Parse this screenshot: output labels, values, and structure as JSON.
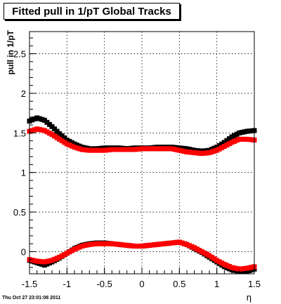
{
  "chart_data": {
    "type": "scatter",
    "title": "Fitted pull in 1/pT  Global Tracks",
    "ylabel": "pull in 1/pT",
    "xlabel": "η",
    "xlim": [
      -1.5,
      1.5
    ],
    "ylim": [
      -0.28,
      2.78
    ],
    "x_ticks": [
      "-1.5",
      "-1",
      "-0.5",
      "0",
      "0.5",
      "1",
      "1.5"
    ],
    "y_ticks": [
      "0",
      "0.5",
      "1",
      "1.5",
      "2",
      "2.5"
    ],
    "grid": true,
    "series": [
      {
        "color": "#000000",
        "marker": "square",
        "x": [
          -1.5,
          -1.4,
          -1.3,
          -1.2,
          -1.1,
          -1.0,
          -0.9,
          -0.8,
          -0.7,
          -0.6,
          -0.5,
          -0.4,
          -0.3,
          -0.2,
          -0.1,
          0.0,
          0.1,
          0.2,
          0.3,
          0.4,
          0.5,
          0.6,
          0.7,
          0.8,
          0.9,
          1.0,
          1.1,
          1.2,
          1.3,
          1.4,
          1.5
        ],
        "y": [
          1.65,
          1.69,
          1.66,
          1.58,
          1.49,
          1.41,
          1.36,
          1.32,
          1.3,
          1.3,
          1.31,
          1.31,
          1.31,
          1.3,
          1.31,
          1.31,
          1.31,
          1.32,
          1.32,
          1.32,
          1.31,
          1.3,
          1.28,
          1.27,
          1.28,
          1.32,
          1.38,
          1.45,
          1.5,
          1.52,
          1.53
        ]
      },
      {
        "color": "#ff0000",
        "marker": "square",
        "x": [
          -1.5,
          -1.4,
          -1.3,
          -1.2,
          -1.1,
          -1.0,
          -0.9,
          -0.8,
          -0.7,
          -0.6,
          -0.5,
          -0.4,
          -0.3,
          -0.2,
          -0.1,
          0.0,
          0.1,
          0.2,
          0.3,
          0.4,
          0.5,
          0.6,
          0.7,
          0.8,
          0.9,
          1.0,
          1.1,
          1.2,
          1.3,
          1.4,
          1.5
        ],
        "y": [
          1.52,
          1.55,
          1.53,
          1.48,
          1.42,
          1.36,
          1.32,
          1.29,
          1.28,
          1.28,
          1.28,
          1.29,
          1.29,
          1.29,
          1.29,
          1.3,
          1.3,
          1.3,
          1.3,
          1.3,
          1.28,
          1.26,
          1.25,
          1.24,
          1.25,
          1.28,
          1.33,
          1.38,
          1.42,
          1.42,
          1.41
        ]
      },
      {
        "color": "#000000",
        "marker": "square",
        "x": [
          -1.5,
          -1.4,
          -1.3,
          -1.2,
          -1.1,
          -1.0,
          -0.9,
          -0.8,
          -0.7,
          -0.6,
          -0.5,
          -0.4,
          -0.3,
          -0.2,
          -0.1,
          0.0,
          0.1,
          0.2,
          0.3,
          0.4,
          0.5,
          0.6,
          0.7,
          0.8,
          0.9,
          1.0,
          1.1,
          1.2,
          1.3,
          1.4,
          1.5
        ],
        "y": [
          -0.11,
          -0.14,
          -0.17,
          -0.13,
          -0.08,
          -0.02,
          0.04,
          0.08,
          0.1,
          0.11,
          0.11,
          0.1,
          0.09,
          0.08,
          0.07,
          0.07,
          0.08,
          0.09,
          0.1,
          0.11,
          0.12,
          0.09,
          0.04,
          -0.01,
          -0.07,
          -0.13,
          -0.19,
          -0.23,
          -0.25,
          -0.25,
          -0.22
        ]
      },
      {
        "color": "#ff0000",
        "marker": "square",
        "x": [
          -1.5,
          -1.4,
          -1.3,
          -1.2,
          -1.1,
          -1.0,
          -0.9,
          -0.8,
          -0.7,
          -0.6,
          -0.5,
          -0.4,
          -0.3,
          -0.2,
          -0.1,
          0.0,
          0.1,
          0.2,
          0.3,
          0.4,
          0.5,
          0.6,
          0.7,
          0.8,
          0.9,
          1.0,
          1.1,
          1.2,
          1.3,
          1.4,
          1.5
        ],
        "y": [
          -0.1,
          -0.12,
          -0.13,
          -0.11,
          -0.07,
          -0.02,
          0.03,
          0.07,
          0.09,
          0.1,
          0.1,
          0.1,
          0.09,
          0.08,
          0.07,
          0.07,
          0.08,
          0.09,
          0.1,
          0.11,
          0.12,
          0.09,
          0.05,
          0.0,
          -0.05,
          -0.11,
          -0.16,
          -0.2,
          -0.22,
          -0.21,
          -0.19
        ]
      }
    ]
  },
  "footer": {
    "timestamp": "Thu Oct 27 23:01:08 2011"
  }
}
